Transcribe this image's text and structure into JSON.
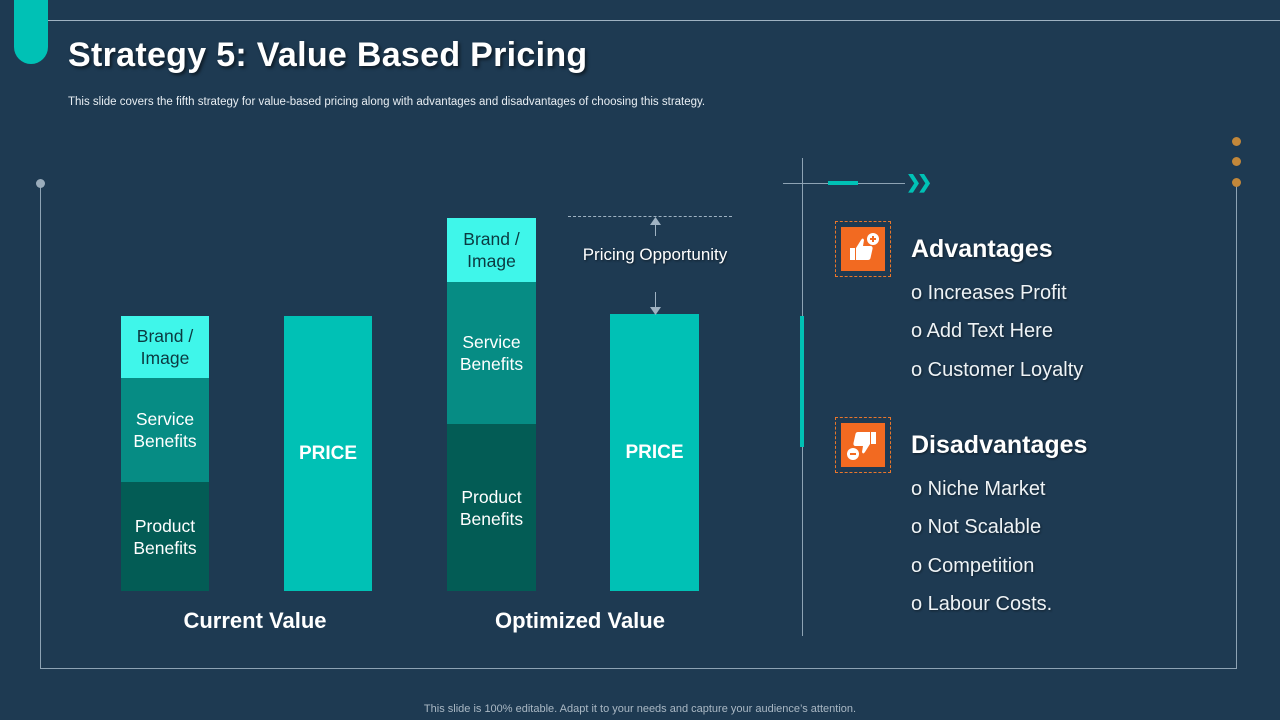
{
  "slide": {
    "title": "Strategy 5: Value Based Pricing",
    "subtitle": "This slide covers the fifth strategy for value-based pricing along with advantages and disadvantages of choosing this strategy.",
    "footer": "This slide is 100% editable. Adapt it to your needs and capture your audience’s attention."
  },
  "current": {
    "brand": "Brand / Image",
    "service": "Service Benefits",
    "product": "Product Benefits",
    "price": "PRICE",
    "caption": "Current Value"
  },
  "optimized": {
    "brand": "Brand / Image",
    "service": "Service Benefits",
    "product": "Product Benefits",
    "price": "PRICE",
    "caption": "Optimized Value",
    "opportunity": "Pricing Opportunity"
  },
  "advantages": {
    "heading": "Advantages",
    "icon": "thumbs-up-plus-icon",
    "items": [
      "o Increases Profit",
      "o Add Text Here",
      "o Customer Loyalty"
    ]
  },
  "disadvantages": {
    "heading": "Disadvantages",
    "icon": "thumbs-down-minus-icon",
    "items": [
      "o Niche Market",
      "o Not Scalable",
      "o Competition",
      "o Labour Costs."
    ]
  },
  "colors": {
    "background": "#1e3a52",
    "teal": "#00c1b5",
    "dark_teal": "#035c55",
    "mid_teal": "#068c84",
    "light_teal": "#3ff6ea",
    "orange": "#f26a21"
  }
}
